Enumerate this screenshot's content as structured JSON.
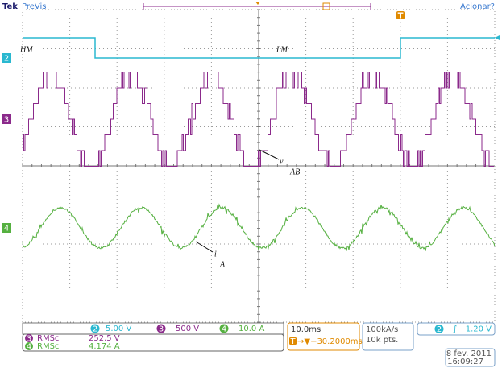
{
  "header": {
    "brand": "Tek",
    "mode": "PreVis",
    "trigger_status": "Acionar?",
    "trigger_marker": "T"
  },
  "annotations": {
    "left_mode": "HM",
    "right_mode": "LM",
    "voltage": {
      "symbol": "v",
      "subscript": "AB"
    },
    "current": {
      "symbol": "i",
      "subscript": "A"
    }
  },
  "channels": [
    {
      "id": "2",
      "scale": "5.00 V"
    },
    {
      "id": "3",
      "scale": "500 V"
    },
    {
      "id": "4",
      "scale": "10.0 A"
    }
  ],
  "measurements": [
    {
      "channel": "3",
      "label": "RMSc",
      "value": "252.5 V"
    },
    {
      "channel": "4",
      "label": "RMSc",
      "value": "4.174 A"
    }
  ],
  "timebase": {
    "scale": "10.0ms",
    "position_marker": "T",
    "position": "→▼−30.2000ms"
  },
  "acquisition": {
    "rate": "100kA/s",
    "length": "10k pts."
  },
  "trigger": {
    "channel": "2",
    "slope": "∫",
    "level": "1.20 V"
  },
  "timestamp": {
    "date": "8 fev. 2011",
    "time": "16:09:27"
  }
}
